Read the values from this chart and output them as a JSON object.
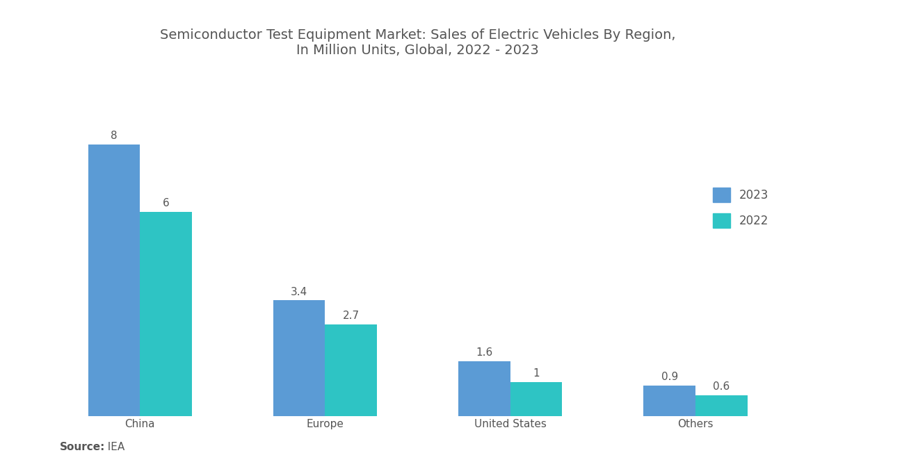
{
  "title": "Semiconductor Test Equipment Market: Sales of Electric Vehicles By Region,\nIn Million Units, Global, 2022 - 2023",
  "categories": [
    "China",
    "Europe",
    "United States",
    "Others"
  ],
  "values_2023": [
    8,
    3.4,
    1.6,
    0.9
  ],
  "values_2022": [
    6,
    2.7,
    1.0,
    0.6
  ],
  "labels_2023": [
    "8",
    "3.4",
    "1.6",
    "0.9"
  ],
  "labels_2022": [
    "6",
    "2.7",
    "1",
    "0.6"
  ],
  "color_2023": "#5b9bd5",
  "color_2022": "#2ec4c4",
  "background_color": "#ffffff",
  "title_fontsize": 14,
  "legend_labels": [
    "2023",
    "2022"
  ],
  "source_bold": "Source:",
  "source_rest": "  IEA",
  "bar_width": 0.28,
  "ylim": [
    0,
    9.8
  ],
  "title_color": "#555555",
  "label_color": "#555555",
  "category_fontsize": 11,
  "value_fontsize": 11,
  "legend_fontsize": 12
}
